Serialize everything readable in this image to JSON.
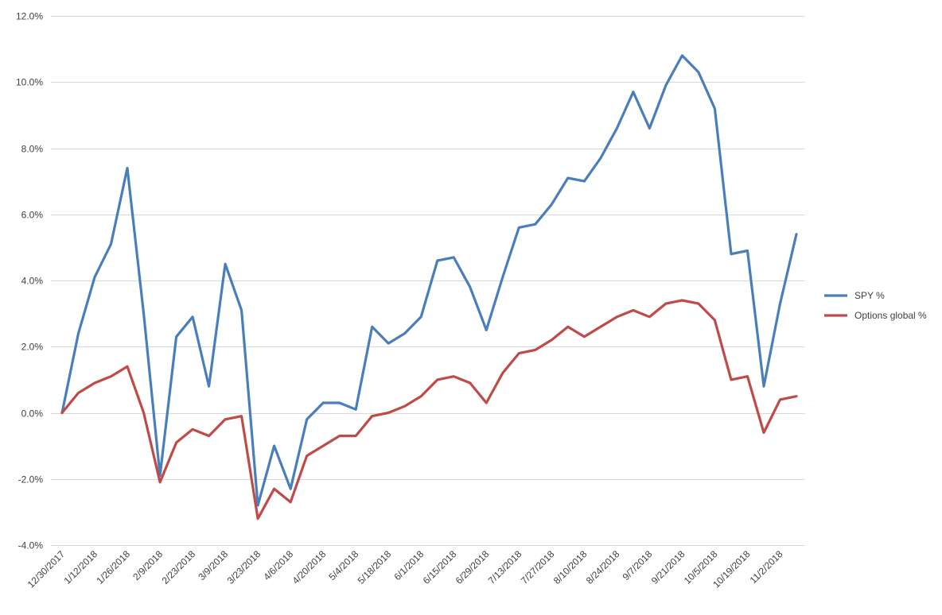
{
  "chart_data": {
    "type": "line",
    "title": "",
    "xlabel": "",
    "ylabel": "",
    "ylim": [
      -4.0,
      12.0
    ],
    "y_ticks": [
      "-4.0%",
      "-2.0%",
      "0.0%",
      "2.0%",
      "4.0%",
      "6.0%",
      "8.0%",
      "10.0%",
      "12.0%"
    ],
    "y_tick_values": [
      -4,
      -2,
      0,
      2,
      4,
      6,
      8,
      10,
      12
    ],
    "grid": true,
    "legend_position": "right",
    "x": [
      "12/30/2017",
      "1/5/2018",
      "1/12/2018",
      "1/19/2018",
      "1/26/2018",
      "2/2/2018",
      "2/9/2018",
      "2/16/2018",
      "2/23/2018",
      "3/2/2018",
      "3/9/2018",
      "3/16/2018",
      "3/23/2018",
      "3/30/2018",
      "4/6/2018",
      "4/13/2018",
      "4/20/2018",
      "4/27/2018",
      "5/4/2018",
      "5/11/2018",
      "5/18/2018",
      "5/25/2018",
      "6/1/2018",
      "6/8/2018",
      "6/15/2018",
      "6/22/2018",
      "6/29/2018",
      "7/6/2018",
      "7/13/2018",
      "7/20/2018",
      "7/27/2018",
      "8/3/2018",
      "8/10/2018",
      "8/17/2018",
      "8/24/2018",
      "8/31/2018",
      "9/7/2018",
      "9/14/2018",
      "9/21/2018",
      "9/28/2018",
      "10/5/2018",
      "10/12/2018",
      "10/19/2018",
      "10/26/2018",
      "11/2/2018",
      "11/9/2018"
    ],
    "x_tick_labels": [
      "12/30/2017",
      "1/12/2018",
      "1/26/2018",
      "2/9/2018",
      "2/23/2018",
      "3/9/2018",
      "3/23/2018",
      "4/6/2018",
      "4/20/2018",
      "5/4/2018",
      "5/18/2018",
      "6/1/2018",
      "6/15/2018",
      "6/29/2018",
      "7/13/2018",
      "7/27/2018",
      "8/10/2018",
      "8/24/2018",
      "9/7/2018",
      "9/21/2018",
      "10/5/2018",
      "10/19/2018",
      "11/2/2018"
    ],
    "series": [
      {
        "name": "SPY %",
        "color": "#4a7ebb",
        "values": [
          0.0,
          2.4,
          4.1,
          5.1,
          7.4,
          3.0,
          -1.9,
          2.3,
          2.9,
          0.8,
          4.5,
          3.1,
          -2.8,
          -1.0,
          -2.3,
          -0.2,
          0.3,
          0.3,
          0.1,
          2.6,
          2.1,
          2.4,
          2.9,
          4.6,
          4.7,
          3.8,
          2.5,
          4.1,
          5.6,
          5.7,
          6.3,
          7.1,
          7.0,
          7.7,
          8.6,
          9.7,
          8.6,
          9.9,
          10.8,
          10.3,
          9.2,
          4.8,
          4.9,
          0.8,
          3.3,
          5.4
        ]
      },
      {
        "name": "Options global %",
        "color": "#be4b48",
        "values": [
          0.0,
          0.6,
          0.9,
          1.1,
          1.4,
          0.0,
          -2.1,
          -0.9,
          -0.5,
          -0.7,
          -0.2,
          -0.1,
          -3.2,
          -2.3,
          -2.7,
          -1.3,
          -1.0,
          -0.7,
          -0.7,
          -0.1,
          0.0,
          0.2,
          0.5,
          1.0,
          1.1,
          0.9,
          0.3,
          1.2,
          1.8,
          1.9,
          2.2,
          2.6,
          2.3,
          2.6,
          2.9,
          3.1,
          2.9,
          3.3,
          3.4,
          3.3,
          2.8,
          1.0,
          1.1,
          -0.6,
          0.4,
          0.5
        ]
      }
    ]
  }
}
